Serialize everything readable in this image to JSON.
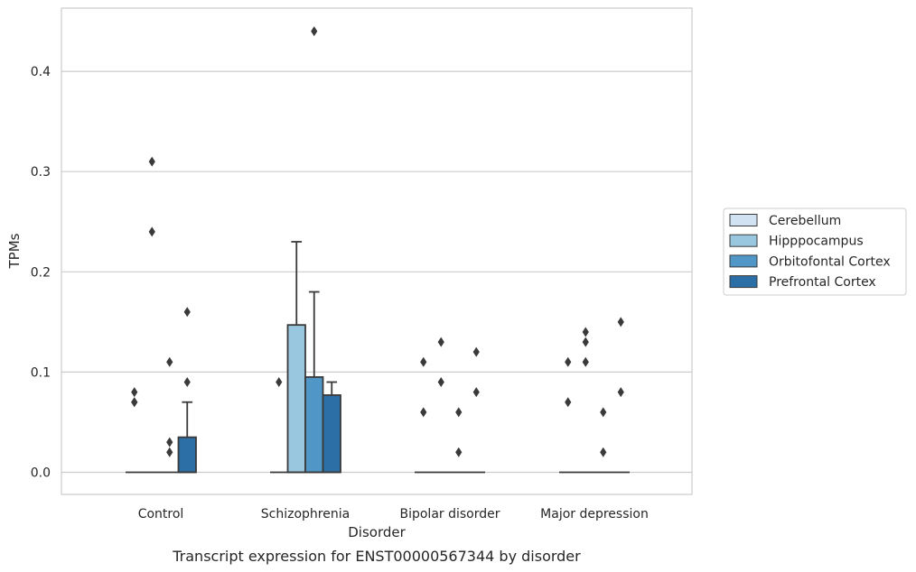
{
  "chart_data": {
    "type": "box",
    "xlabel": "Disorder",
    "ylabel": "TPMs",
    "caption": "Transcript expression for ENST00000567344 by disorder",
    "ylim": [
      -0.021,
      0.465
    ],
    "yticks": [
      0.0,
      0.1,
      0.2,
      0.3,
      0.4
    ],
    "ytick_labels": [
      "0.0",
      "0.1",
      "0.2",
      "0.3",
      "0.4"
    ],
    "grid": "horizontal",
    "legend_position": "right",
    "categories": [
      "Control",
      "Schizophrenia",
      "Bipolar disorder",
      "Major depression"
    ],
    "series": [
      {
        "name": "Cerebellum",
        "color": "#d1e2f2",
        "boxes": [
          {
            "q1": 0,
            "median": 0,
            "q3": 0,
            "whisker_low": 0,
            "whisker_high": 0,
            "outliers": [
              0.08,
              0.07,
              0.07
            ]
          },
          {
            "q1": 0,
            "median": 0,
            "q3": 0,
            "whisker_low": 0,
            "whisker_high": 0,
            "outliers": [
              0.09
            ]
          },
          {
            "q1": 0,
            "median": 0,
            "q3": 0,
            "whisker_low": 0,
            "whisker_high": 0,
            "outliers": [
              0.11,
              0.06
            ]
          },
          {
            "q1": 0,
            "median": 0,
            "q3": 0,
            "whisker_low": 0,
            "whisker_high": 0,
            "outliers": [
              0.11,
              0.07
            ]
          }
        ]
      },
      {
        "name": "Hipppocampus",
        "color": "#9ac7e0",
        "boxes": [
          {
            "q1": 0,
            "median": 0,
            "q3": 0,
            "whisker_low": 0,
            "whisker_high": 0,
            "outliers": [
              0.31,
              0.24
            ]
          },
          {
            "q1": 0,
            "median": 0,
            "q3": 0.147,
            "whisker_low": 0,
            "whisker_high": 0.23,
            "outliers": []
          },
          {
            "q1": 0,
            "median": 0,
            "q3": 0,
            "whisker_low": 0,
            "whisker_high": 0,
            "outliers": [
              0.13,
              0.09
            ]
          },
          {
            "q1": 0,
            "median": 0,
            "q3": 0,
            "whisker_low": 0,
            "whisker_high": 0,
            "outliers": [
              0.14,
              0.13,
              0.11
            ]
          }
        ]
      },
      {
        "name": "Orbitofontal Cortex",
        "color": "#5097c7",
        "boxes": [
          {
            "q1": 0,
            "median": 0,
            "q3": 0,
            "whisker_low": 0,
            "whisker_high": 0,
            "outliers": [
              0.11,
              0.03,
              0.02
            ]
          },
          {
            "q1": 0,
            "median": 0,
            "q3": 0.095,
            "whisker_low": 0,
            "whisker_high": 0.18,
            "outliers": [
              0.44
            ]
          },
          {
            "q1": 0,
            "median": 0,
            "q3": 0,
            "whisker_low": 0,
            "whisker_high": 0,
            "outliers": [
              0.06,
              0.02
            ]
          },
          {
            "q1": 0,
            "median": 0,
            "q3": 0,
            "whisker_low": 0,
            "whisker_high": 0,
            "outliers": [
              0.06,
              0.02
            ]
          }
        ]
      },
      {
        "name": "Prefrontal Cortex",
        "color": "#2c6ea6",
        "boxes": [
          {
            "q1": 0,
            "median": 0,
            "q3": 0.035,
            "whisker_low": 0,
            "whisker_high": 0.07,
            "outliers": [
              0.16,
              0.09
            ]
          },
          {
            "q1": 0,
            "median": 0,
            "q3": 0.077,
            "whisker_low": 0,
            "whisker_high": 0.09,
            "outliers": []
          },
          {
            "q1": 0,
            "median": 0,
            "q3": 0,
            "whisker_low": 0,
            "whisker_high": 0,
            "outliers": [
              0.12,
              0.08
            ]
          },
          {
            "q1": 0,
            "median": 0,
            "q3": 0,
            "whisker_low": 0,
            "whisker_high": 0,
            "outliers": [
              0.15,
              0.08
            ]
          }
        ]
      }
    ]
  }
}
